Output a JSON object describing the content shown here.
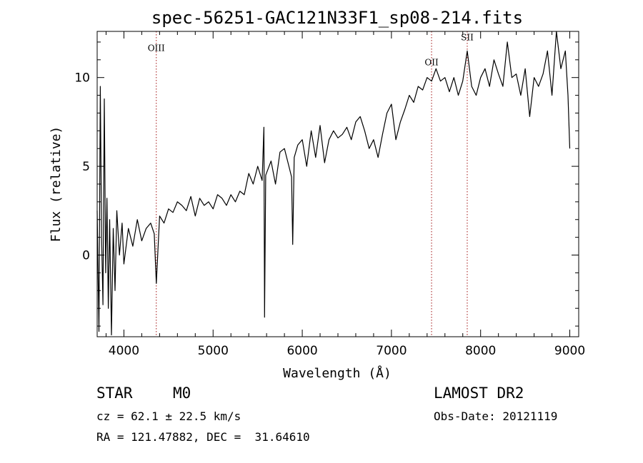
{
  "chart_data": {
    "type": "line",
    "title": "spec-56251-GAC121N33F1_sp08-214.fits",
    "xlabel": "Wavelength (Å)",
    "ylabel": "Flux (relative)",
    "xlim": [
      3700,
      9100
    ],
    "ylim": [
      -4.6,
      12.6
    ],
    "xticks": [
      4000,
      5000,
      6000,
      7000,
      8000,
      9000
    ],
    "yticks": [
      0,
      5,
      10
    ],
    "grid": false,
    "line_color": "#000000",
    "marker_color": "#a01010",
    "lines": [
      {
        "name": "OIII",
        "x": 4363,
        "label_y": 11.5
      },
      {
        "name": "OII",
        "x": 7450,
        "label_y": 10.7
      },
      {
        "name": "SII",
        "x": 7850,
        "label_y": 12.1
      }
    ],
    "series": [
      {
        "x": [
          3700,
          3720,
          3735,
          3750,
          3765,
          3780,
          3795,
          3810,
          3825,
          3840,
          3860,
          3880,
          3900,
          3920,
          3950,
          3980,
          4000,
          4050,
          4100,
          4150,
          4200,
          4250,
          4300,
          4340,
          4363,
          4400,
          4450,
          4500,
          4550,
          4600,
          4650,
          4700,
          4750,
          4800,
          4850,
          4900,
          4950,
          5000,
          5050,
          5100,
          5150,
          5200,
          5250,
          5300,
          5350,
          5400,
          5450,
          5500,
          5550,
          5570,
          5577,
          5590,
          5650,
          5700,
          5750,
          5800,
          5850,
          5880,
          5893,
          5910,
          5950,
          6000,
          6050,
          6100,
          6150,
          6200,
          6250,
          6300,
          6350,
          6400,
          6450,
          6500,
          6550,
          6600,
          6650,
          6700,
          6750,
          6800,
          6850,
          6900,
          6950,
          7000,
          7050,
          7100,
          7150,
          7200,
          7250,
          7300,
          7350,
          7400,
          7450,
          7500,
          7550,
          7600,
          7650,
          7700,
          7750,
          7800,
          7850,
          7900,
          7950,
          8000,
          8050,
          8100,
          8150,
          8200,
          8250,
          8300,
          8350,
          8400,
          8450,
          8500,
          8550,
          8600,
          8650,
          8700,
          8750,
          8800,
          8850,
          8900,
          8950,
          8980,
          9000
        ],
        "y": [
          2.5,
          -4.3,
          9.5,
          1.0,
          -2.8,
          8.8,
          -1.0,
          3.2,
          -3.0,
          2.0,
          -4.5,
          1.5,
          -2.0,
          2.5,
          0.0,
          1.8,
          -0.5,
          1.5,
          0.5,
          2.0,
          0.8,
          1.5,
          1.8,
          1.2,
          -1.6,
          2.2,
          1.8,
          2.6,
          2.4,
          3.0,
          2.8,
          2.5,
          3.3,
          2.2,
          3.2,
          2.8,
          3.0,
          2.6,
          3.4,
          3.2,
          2.8,
          3.4,
          3.0,
          3.6,
          3.4,
          4.6,
          4.0,
          5.0,
          4.2,
          7.2,
          -3.5,
          4.5,
          5.3,
          4.0,
          5.8,
          6.0,
          5.0,
          4.4,
          0.6,
          5.5,
          6.2,
          6.5,
          5.0,
          7.0,
          5.5,
          7.3,
          5.2,
          6.5,
          7.0,
          6.6,
          6.8,
          7.2,
          6.5,
          7.5,
          7.8,
          7.0,
          6.0,
          6.5,
          5.5,
          6.8,
          8.0,
          8.5,
          6.5,
          7.5,
          8.2,
          9.0,
          8.6,
          9.5,
          9.3,
          10.0,
          9.8,
          10.5,
          9.8,
          10.0,
          9.2,
          10.0,
          9.0,
          9.8,
          11.5,
          9.5,
          9.0,
          10.0,
          10.5,
          9.5,
          11.0,
          10.2,
          9.5,
          12.0,
          10.0,
          10.2,
          9.0,
          10.5,
          7.8,
          10.0,
          9.5,
          10.2,
          11.5,
          9.0,
          12.8,
          10.5,
          11.5,
          9.0,
          6.0
        ]
      }
    ]
  },
  "info": {
    "class_label": "STAR",
    "subclass_label": "M0",
    "survey": "LAMOST DR2",
    "cz_line": "cz = 62.1 ± 22.5 km/s",
    "obs_date": "Obs-Date: 20121119",
    "radec": "RA = 121.47882, DEC =  31.64610"
  }
}
